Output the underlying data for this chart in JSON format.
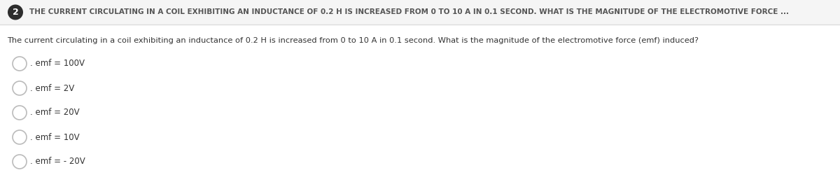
{
  "background_color": "#ffffff",
  "header_bg_color": "#f5f5f5",
  "header_number": "2",
  "header_number_bg": "#2d2d2d",
  "header_number_color": "#ffffff",
  "header_text": "THE CURRENT CIRCULATING IN A COIL EXHIBITING AN INDUCTANCE OF 0.2 H IS INCREASED FROM 0 TO 10 A IN 0.1 SECOND. WHAT IS THE MAGNITUDE OF THE ELECTROMOTIVE FORCE ...",
  "header_text_color": "#555555",
  "header_font_size": 7.5,
  "question_text": "The current circulating in a coil exhibiting an inductance of 0.2 H is increased from 0 to 10 A in 0.1 second. What is the magnitude of the electromotive force (emf) induced?",
  "question_font_size": 8.2,
  "question_color": "#333333",
  "options": [
    ". emf = 100V",
    ". emf = 2V",
    ". emf = 20V",
    ". emf = 10V",
    ". emf = - 20V"
  ],
  "option_font_size": 8.5,
  "option_color": "#333333",
  "circle_edge_color": "#bbbbbb",
  "circle_face_color": "#ffffff",
  "separator_color": "#dddddd",
  "fig_width": 12.0,
  "fig_height": 2.6,
  "dpi": 100
}
